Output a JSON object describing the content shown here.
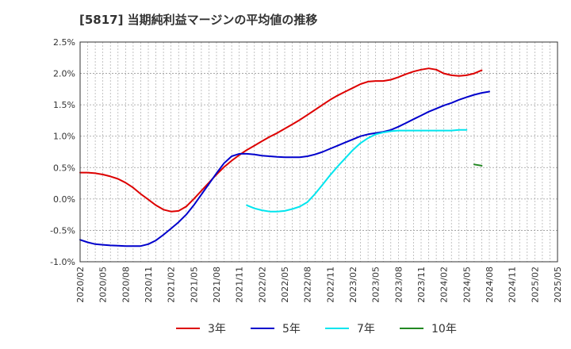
{
  "chart_data": {
    "type": "line",
    "title": "[5817]  当期純利益マージンの平均値の推移",
    "xlabel": "",
    "ylabel": "",
    "ylim": [
      -1.0,
      2.5
    ],
    "y_ticks": [
      -1.0,
      -0.5,
      0.0,
      0.5,
      1.0,
      1.5,
      2.0,
      2.5
    ],
    "y_tick_labels": [
      "-1.0%",
      "-0.5%",
      "0.0%",
      "0.5%",
      "1.0%",
      "1.5%",
      "2.0%",
      "2.5%"
    ],
    "x_tick_labels": [
      "2020/02",
      "2020/05",
      "2020/08",
      "2020/11",
      "2021/02",
      "2021/05",
      "2021/08",
      "2021/11",
      "2022/02",
      "2022/05",
      "2022/08",
      "2022/11",
      "2023/02",
      "2023/05",
      "2023/08",
      "2023/11",
      "2024/02",
      "2024/05",
      "2024/08",
      "2024/11",
      "2025/02",
      "2025/05"
    ],
    "grid": true,
    "legend_position": "bottom",
    "series": [
      {
        "name": "3年",
        "color": "#dd0000",
        "values": [
          0.42,
          0.42,
          0.41,
          0.39,
          0.36,
          0.32,
          0.26,
          0.18,
          0.08,
          -0.01,
          -0.1,
          -0.17,
          -0.2,
          -0.19,
          -0.12,
          0.0,
          0.13,
          0.26,
          0.39,
          0.51,
          0.61,
          0.7,
          0.78,
          0.85,
          0.92,
          0.99,
          1.05,
          1.12,
          1.19,
          1.26,
          1.34,
          1.42,
          1.5,
          1.58,
          1.65,
          1.71,
          1.77,
          1.83,
          1.87,
          1.88,
          1.88,
          1.9,
          1.94,
          1.99,
          2.03,
          2.06,
          2.08,
          2.06,
          2.0,
          1.97,
          1.96,
          1.97,
          2.0,
          2.05
        ]
      },
      {
        "name": "5年",
        "color": "#0000cc",
        "values": [
          -0.65,
          -0.69,
          -0.72,
          -0.73,
          -0.74,
          -0.745,
          -0.75,
          -0.75,
          -0.75,
          -0.72,
          -0.66,
          -0.57,
          -0.47,
          -0.37,
          -0.25,
          -0.1,
          0.07,
          0.24,
          0.41,
          0.57,
          0.68,
          0.72,
          0.72,
          0.71,
          0.69,
          0.68,
          0.67,
          0.665,
          0.665,
          0.665,
          0.68,
          0.71,
          0.75,
          0.8,
          0.85,
          0.9,
          0.95,
          1.0,
          1.03,
          1.05,
          1.07,
          1.1,
          1.15,
          1.21,
          1.27,
          1.33,
          1.39,
          1.44,
          1.49,
          1.53,
          1.58,
          1.62,
          1.66,
          1.69,
          1.71
        ]
      },
      {
        "name": "7年",
        "color": "#00e5ee",
        "values": [
          null,
          null,
          null,
          null,
          null,
          null,
          null,
          null,
          null,
          null,
          null,
          null,
          null,
          null,
          null,
          null,
          null,
          null,
          null,
          null,
          null,
          null,
          -0.1,
          -0.15,
          -0.18,
          -0.2,
          -0.2,
          -0.19,
          -0.16,
          -0.12,
          -0.05,
          0.08,
          0.23,
          0.38,
          0.52,
          0.65,
          0.78,
          0.89,
          0.97,
          1.03,
          1.06,
          1.08,
          1.09,
          1.09,
          1.09,
          1.09,
          1.09,
          1.09,
          1.09,
          1.09,
          1.1,
          1.1
        ]
      },
      {
        "name": "10年",
        "color": "#228822",
        "values": [
          null,
          null,
          null,
          null,
          null,
          null,
          null,
          null,
          null,
          null,
          null,
          null,
          null,
          null,
          null,
          null,
          null,
          null,
          null,
          null,
          null,
          null,
          null,
          null,
          null,
          null,
          null,
          null,
          null,
          null,
          null,
          null,
          null,
          null,
          null,
          null,
          null,
          null,
          null,
          null,
          null,
          null,
          null,
          null,
          null,
          null,
          null,
          null,
          null,
          null,
          null,
          null,
          0.55,
          0.53
        ]
      }
    ]
  }
}
